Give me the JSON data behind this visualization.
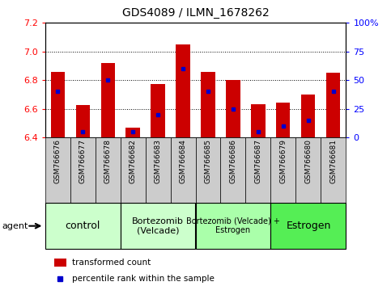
{
  "title": "GDS4089 / ILMN_1678262",
  "samples": [
    "GSM766676",
    "GSM766677",
    "GSM766678",
    "GSM766682",
    "GSM766683",
    "GSM766684",
    "GSM766685",
    "GSM766686",
    "GSM766687",
    "GSM766679",
    "GSM766680",
    "GSM766681"
  ],
  "bar_tops": [
    6.855,
    6.625,
    6.92,
    6.47,
    6.775,
    7.05,
    6.855,
    6.8,
    6.63,
    6.64,
    6.7,
    6.85
  ],
  "percentile_ranks": [
    40,
    5,
    50,
    5,
    20,
    60,
    40,
    25,
    5,
    10,
    15,
    40
  ],
  "ymin": 6.4,
  "ymax": 7.2,
  "yticks_left": [
    6.4,
    6.6,
    6.8,
    7.0,
    7.2
  ],
  "yticks_right": [
    0,
    25,
    50,
    75,
    100
  ],
  "right_axis_labels": [
    "0",
    "25",
    "50",
    "75",
    "100%"
  ],
  "bar_color": "#cc0000",
  "blue_color": "#0000cc",
  "bar_width": 0.55,
  "groups": [
    {
      "label": "control",
      "indices": [
        0,
        1,
        2
      ],
      "color": "#ccffcc",
      "fontsize": 9
    },
    {
      "label": "Bortezomib\n(Velcade)",
      "indices": [
        3,
        4,
        5
      ],
      "color": "#ccffcc",
      "fontsize": 8
    },
    {
      "label": "Bortezomib (Velcade) +\nEstrogen",
      "indices": [
        6,
        7,
        8
      ],
      "color": "#aaffaa",
      "fontsize": 7
    },
    {
      "label": "Estrogen",
      "indices": [
        9,
        10,
        11
      ],
      "color": "#55ee55",
      "fontsize": 9
    }
  ],
  "tick_bg_color": "#cccccc",
  "grid_color": "#000000",
  "title_fontsize": 10,
  "ytick_fontsize": 8,
  "xtick_fontsize": 6.5,
  "legend_fontsize": 7.5,
  "agent_fontsize": 8
}
